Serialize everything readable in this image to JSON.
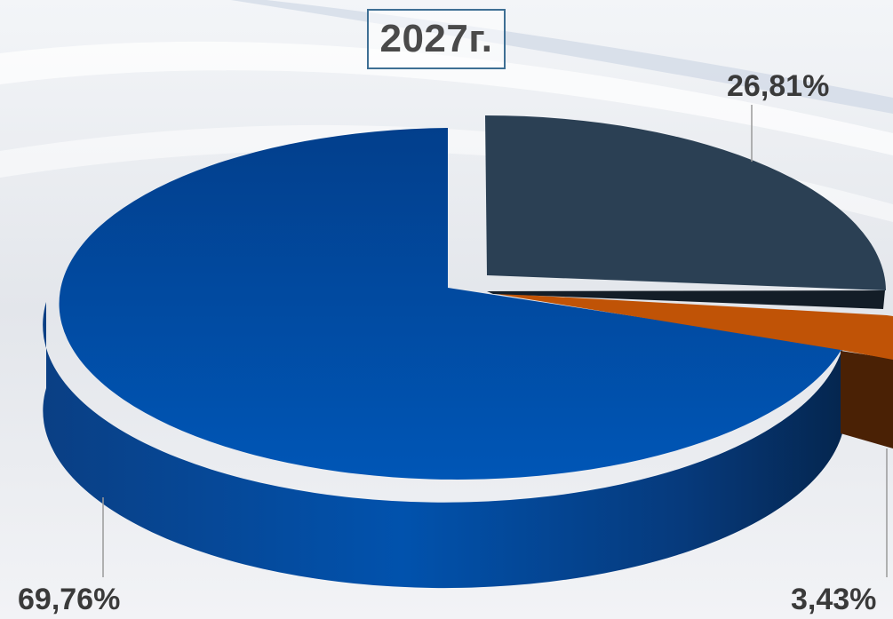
{
  "chart_data": {
    "type": "pie",
    "title": "2027г.",
    "slices": [
      {
        "label": "69,76%",
        "value": 69.76,
        "color": "#0152ad"
      },
      {
        "label": "26,81%",
        "value": 26.81,
        "color": "#2b4054"
      },
      {
        "label": "3,43%",
        "value": 3.43,
        "color": "#c05306"
      }
    ],
    "style": "3d",
    "exploded": true
  }
}
